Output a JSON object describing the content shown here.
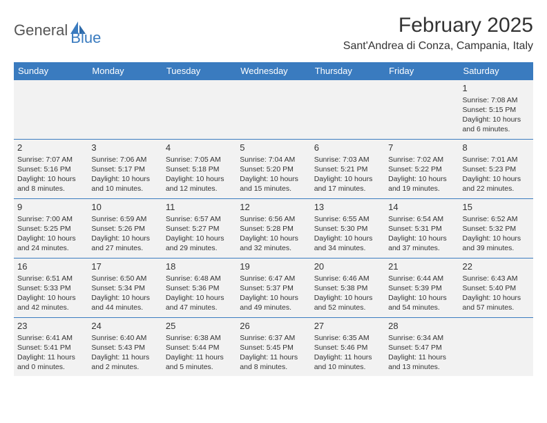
{
  "header": {
    "logo_part1": "General",
    "logo_part2": "Blue",
    "month_title": "February 2025",
    "location": "Sant'Andrea di Conza, Campania, Italy"
  },
  "colors": {
    "header_bar": "#3a7bbf",
    "cell_bg": "#f2f2f2",
    "text": "#333333",
    "logo_gray": "#555555",
    "logo_blue": "#3a7bbf",
    "page_bg": "#ffffff"
  },
  "day_headers": [
    "Sunday",
    "Monday",
    "Tuesday",
    "Wednesday",
    "Thursday",
    "Friday",
    "Saturday"
  ],
  "weeks": [
    [
      null,
      null,
      null,
      null,
      null,
      null,
      {
        "n": "1",
        "sunrise": "Sunrise: 7:08 AM",
        "sunset": "Sunset: 5:15 PM",
        "day1": "Daylight: 10 hours",
        "day2": "and 6 minutes."
      }
    ],
    [
      {
        "n": "2",
        "sunrise": "Sunrise: 7:07 AM",
        "sunset": "Sunset: 5:16 PM",
        "day1": "Daylight: 10 hours",
        "day2": "and 8 minutes."
      },
      {
        "n": "3",
        "sunrise": "Sunrise: 7:06 AM",
        "sunset": "Sunset: 5:17 PM",
        "day1": "Daylight: 10 hours",
        "day2": "and 10 minutes."
      },
      {
        "n": "4",
        "sunrise": "Sunrise: 7:05 AM",
        "sunset": "Sunset: 5:18 PM",
        "day1": "Daylight: 10 hours",
        "day2": "and 12 minutes."
      },
      {
        "n": "5",
        "sunrise": "Sunrise: 7:04 AM",
        "sunset": "Sunset: 5:20 PM",
        "day1": "Daylight: 10 hours",
        "day2": "and 15 minutes."
      },
      {
        "n": "6",
        "sunrise": "Sunrise: 7:03 AM",
        "sunset": "Sunset: 5:21 PM",
        "day1": "Daylight: 10 hours",
        "day2": "and 17 minutes."
      },
      {
        "n": "7",
        "sunrise": "Sunrise: 7:02 AM",
        "sunset": "Sunset: 5:22 PM",
        "day1": "Daylight: 10 hours",
        "day2": "and 19 minutes."
      },
      {
        "n": "8",
        "sunrise": "Sunrise: 7:01 AM",
        "sunset": "Sunset: 5:23 PM",
        "day1": "Daylight: 10 hours",
        "day2": "and 22 minutes."
      }
    ],
    [
      {
        "n": "9",
        "sunrise": "Sunrise: 7:00 AM",
        "sunset": "Sunset: 5:25 PM",
        "day1": "Daylight: 10 hours",
        "day2": "and 24 minutes."
      },
      {
        "n": "10",
        "sunrise": "Sunrise: 6:59 AM",
        "sunset": "Sunset: 5:26 PM",
        "day1": "Daylight: 10 hours",
        "day2": "and 27 minutes."
      },
      {
        "n": "11",
        "sunrise": "Sunrise: 6:57 AM",
        "sunset": "Sunset: 5:27 PM",
        "day1": "Daylight: 10 hours",
        "day2": "and 29 minutes."
      },
      {
        "n": "12",
        "sunrise": "Sunrise: 6:56 AM",
        "sunset": "Sunset: 5:28 PM",
        "day1": "Daylight: 10 hours",
        "day2": "and 32 minutes."
      },
      {
        "n": "13",
        "sunrise": "Sunrise: 6:55 AM",
        "sunset": "Sunset: 5:30 PM",
        "day1": "Daylight: 10 hours",
        "day2": "and 34 minutes."
      },
      {
        "n": "14",
        "sunrise": "Sunrise: 6:54 AM",
        "sunset": "Sunset: 5:31 PM",
        "day1": "Daylight: 10 hours",
        "day2": "and 37 minutes."
      },
      {
        "n": "15",
        "sunrise": "Sunrise: 6:52 AM",
        "sunset": "Sunset: 5:32 PM",
        "day1": "Daylight: 10 hours",
        "day2": "and 39 minutes."
      }
    ],
    [
      {
        "n": "16",
        "sunrise": "Sunrise: 6:51 AM",
        "sunset": "Sunset: 5:33 PM",
        "day1": "Daylight: 10 hours",
        "day2": "and 42 minutes."
      },
      {
        "n": "17",
        "sunrise": "Sunrise: 6:50 AM",
        "sunset": "Sunset: 5:34 PM",
        "day1": "Daylight: 10 hours",
        "day2": "and 44 minutes."
      },
      {
        "n": "18",
        "sunrise": "Sunrise: 6:48 AM",
        "sunset": "Sunset: 5:36 PM",
        "day1": "Daylight: 10 hours",
        "day2": "and 47 minutes."
      },
      {
        "n": "19",
        "sunrise": "Sunrise: 6:47 AM",
        "sunset": "Sunset: 5:37 PM",
        "day1": "Daylight: 10 hours",
        "day2": "and 49 minutes."
      },
      {
        "n": "20",
        "sunrise": "Sunrise: 6:46 AM",
        "sunset": "Sunset: 5:38 PM",
        "day1": "Daylight: 10 hours",
        "day2": "and 52 minutes."
      },
      {
        "n": "21",
        "sunrise": "Sunrise: 6:44 AM",
        "sunset": "Sunset: 5:39 PM",
        "day1": "Daylight: 10 hours",
        "day2": "and 54 minutes."
      },
      {
        "n": "22",
        "sunrise": "Sunrise: 6:43 AM",
        "sunset": "Sunset: 5:40 PM",
        "day1": "Daylight: 10 hours",
        "day2": "and 57 minutes."
      }
    ],
    [
      {
        "n": "23",
        "sunrise": "Sunrise: 6:41 AM",
        "sunset": "Sunset: 5:41 PM",
        "day1": "Daylight: 11 hours",
        "day2": "and 0 minutes."
      },
      {
        "n": "24",
        "sunrise": "Sunrise: 6:40 AM",
        "sunset": "Sunset: 5:43 PM",
        "day1": "Daylight: 11 hours",
        "day2": "and 2 minutes."
      },
      {
        "n": "25",
        "sunrise": "Sunrise: 6:38 AM",
        "sunset": "Sunset: 5:44 PM",
        "day1": "Daylight: 11 hours",
        "day2": "and 5 minutes."
      },
      {
        "n": "26",
        "sunrise": "Sunrise: 6:37 AM",
        "sunset": "Sunset: 5:45 PM",
        "day1": "Daylight: 11 hours",
        "day2": "and 8 minutes."
      },
      {
        "n": "27",
        "sunrise": "Sunrise: 6:35 AM",
        "sunset": "Sunset: 5:46 PM",
        "day1": "Daylight: 11 hours",
        "day2": "and 10 minutes."
      },
      {
        "n": "28",
        "sunrise": "Sunrise: 6:34 AM",
        "sunset": "Sunset: 5:47 PM",
        "day1": "Daylight: 11 hours",
        "day2": "and 13 minutes."
      },
      null
    ]
  ]
}
